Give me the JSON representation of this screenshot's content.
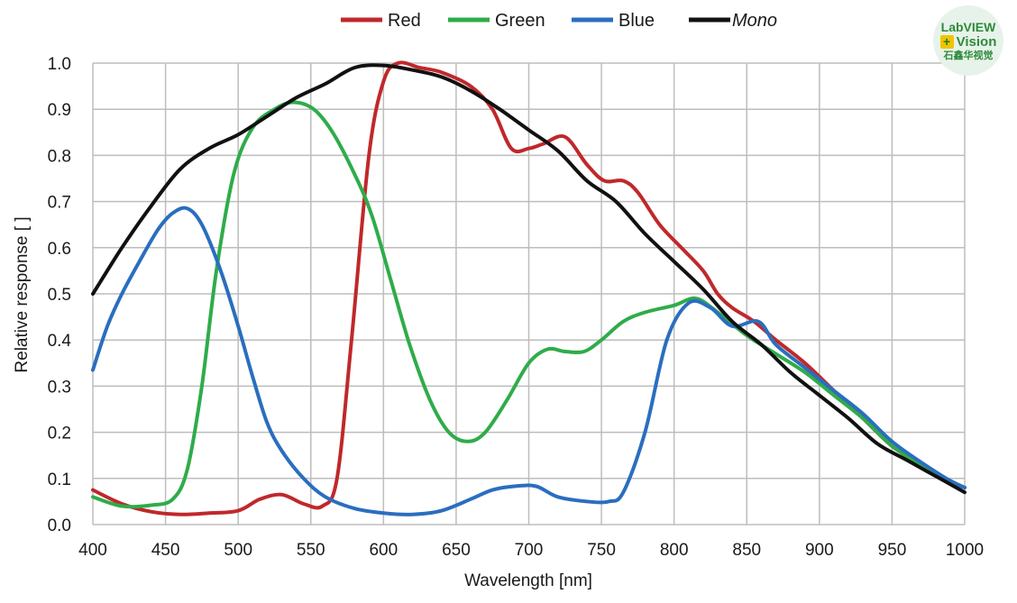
{
  "chart_data": {
    "type": "line",
    "xlabel": "Wavelength [nm]",
    "ylabel": "Relative response [ ]",
    "xlim": [
      400,
      1000
    ],
    "ylim": [
      0,
      1.0
    ],
    "xticks": [
      400,
      450,
      500,
      550,
      600,
      650,
      700,
      750,
      800,
      850,
      900,
      950,
      1000
    ],
    "xtick_labels": [
      "400",
      "450",
      "500",
      "550",
      "600",
      "650",
      "700",
      "750",
      "800",
      "850",
      "900",
      "950",
      "1000"
    ],
    "yticks": [
      0,
      0.1,
      0.2,
      0.3,
      0.4,
      0.5,
      0.6,
      0.7,
      0.8,
      0.9,
      1.0
    ],
    "ytick_labels": [
      "0.0",
      "0.1",
      "0.2",
      "0.3",
      "0.4",
      "0.5",
      "0.6",
      "0.7",
      "0.8",
      "0.9",
      "1.0"
    ],
    "grid": true,
    "legend_position": "top",
    "series": [
      {
        "name": "Red",
        "color": "#c0282b",
        "points": [
          [
            400,
            0.075
          ],
          [
            420,
            0.045
          ],
          [
            440,
            0.028
          ],
          [
            460,
            0.022
          ],
          [
            480,
            0.025
          ],
          [
            500,
            0.03
          ],
          [
            515,
            0.055
          ],
          [
            530,
            0.065
          ],
          [
            545,
            0.045
          ],
          [
            558,
            0.04
          ],
          [
            568,
            0.1
          ],
          [
            578,
            0.4
          ],
          [
            590,
            0.8
          ],
          [
            600,
            0.96
          ],
          [
            610,
            1.0
          ],
          [
            625,
            0.99
          ],
          [
            640,
            0.98
          ],
          [
            660,
            0.95
          ],
          [
            675,
            0.9
          ],
          [
            688,
            0.815
          ],
          [
            700,
            0.815
          ],
          [
            710,
            0.825
          ],
          [
            725,
            0.84
          ],
          [
            740,
            0.78
          ],
          [
            752,
            0.745
          ],
          [
            765,
            0.745
          ],
          [
            775,
            0.72
          ],
          [
            790,
            0.65
          ],
          [
            805,
            0.6
          ],
          [
            820,
            0.55
          ],
          [
            830,
            0.5
          ],
          [
            840,
            0.47
          ],
          [
            855,
            0.44
          ],
          [
            870,
            0.4
          ],
          [
            890,
            0.35
          ],
          [
            910,
            0.29
          ],
          [
            930,
            0.23
          ],
          [
            950,
            0.17
          ],
          [
            970,
            0.13
          ],
          [
            990,
            0.095
          ],
          [
            1000,
            0.08
          ]
        ]
      },
      {
        "name": "Green",
        "color": "#2fac4a",
        "points": [
          [
            400,
            0.06
          ],
          [
            420,
            0.04
          ],
          [
            440,
            0.042
          ],
          [
            455,
            0.055
          ],
          [
            465,
            0.12
          ],
          [
            475,
            0.3
          ],
          [
            485,
            0.55
          ],
          [
            497,
            0.76
          ],
          [
            510,
            0.86
          ],
          [
            525,
            0.9
          ],
          [
            538,
            0.915
          ],
          [
            552,
            0.9
          ],
          [
            565,
            0.85
          ],
          [
            580,
            0.76
          ],
          [
            592,
            0.67
          ],
          [
            605,
            0.53
          ],
          [
            618,
            0.39
          ],
          [
            632,
            0.27
          ],
          [
            645,
            0.2
          ],
          [
            658,
            0.18
          ],
          [
            670,
            0.2
          ],
          [
            685,
            0.27
          ],
          [
            700,
            0.35
          ],
          [
            713,
            0.38
          ],
          [
            725,
            0.375
          ],
          [
            738,
            0.375
          ],
          [
            750,
            0.4
          ],
          [
            765,
            0.44
          ],
          [
            780,
            0.46
          ],
          [
            800,
            0.475
          ],
          [
            815,
            0.49
          ],
          [
            830,
            0.46
          ],
          [
            850,
            0.41
          ],
          [
            870,
            0.37
          ],
          [
            890,
            0.33
          ],
          [
            910,
            0.28
          ],
          [
            930,
            0.23
          ],
          [
            950,
            0.17
          ],
          [
            970,
            0.13
          ],
          [
            990,
            0.095
          ],
          [
            1000,
            0.08
          ]
        ]
      },
      {
        "name": "Blue",
        "color": "#2a6ebf",
        "points": [
          [
            400,
            0.335
          ],
          [
            410,
            0.43
          ],
          [
            420,
            0.5
          ],
          [
            432,
            0.57
          ],
          [
            445,
            0.64
          ],
          [
            455,
            0.675
          ],
          [
            465,
            0.685
          ],
          [
            475,
            0.65
          ],
          [
            488,
            0.55
          ],
          [
            500,
            0.43
          ],
          [
            510,
            0.32
          ],
          [
            520,
            0.22
          ],
          [
            530,
            0.16
          ],
          [
            545,
            0.1
          ],
          [
            560,
            0.06
          ],
          [
            580,
            0.035
          ],
          [
            600,
            0.025
          ],
          [
            620,
            0.022
          ],
          [
            640,
            0.03
          ],
          [
            660,
            0.055
          ],
          [
            675,
            0.075
          ],
          [
            690,
            0.083
          ],
          [
            705,
            0.083
          ],
          [
            720,
            0.06
          ],
          [
            740,
            0.05
          ],
          [
            755,
            0.05
          ],
          [
            765,
            0.07
          ],
          [
            780,
            0.2
          ],
          [
            795,
            0.4
          ],
          [
            810,
            0.48
          ],
          [
            825,
            0.47
          ],
          [
            840,
            0.43
          ],
          [
            858,
            0.44
          ],
          [
            870,
            0.39
          ],
          [
            890,
            0.34
          ],
          [
            910,
            0.29
          ],
          [
            930,
            0.24
          ],
          [
            950,
            0.18
          ],
          [
            970,
            0.135
          ],
          [
            990,
            0.095
          ],
          [
            1000,
            0.08
          ]
        ]
      },
      {
        "name": "Mono",
        "color": "#111111",
        "points": [
          [
            400,
            0.5
          ],
          [
            420,
            0.6
          ],
          [
            440,
            0.69
          ],
          [
            460,
            0.77
          ],
          [
            480,
            0.815
          ],
          [
            500,
            0.845
          ],
          [
            520,
            0.885
          ],
          [
            540,
            0.925
          ],
          [
            560,
            0.955
          ],
          [
            580,
            0.99
          ],
          [
            600,
            0.995
          ],
          [
            620,
            0.985
          ],
          [
            640,
            0.97
          ],
          [
            660,
            0.94
          ],
          [
            680,
            0.9
          ],
          [
            700,
            0.855
          ],
          [
            720,
            0.81
          ],
          [
            740,
            0.745
          ],
          [
            760,
            0.7
          ],
          [
            780,
            0.63
          ],
          [
            800,
            0.57
          ],
          [
            820,
            0.51
          ],
          [
            840,
            0.44
          ],
          [
            860,
            0.39
          ],
          [
            880,
            0.33
          ],
          [
            900,
            0.28
          ],
          [
            920,
            0.23
          ],
          [
            940,
            0.175
          ],
          [
            960,
            0.14
          ],
          [
            980,
            0.105
          ],
          [
            1000,
            0.07
          ]
        ]
      }
    ]
  },
  "logo": {
    "line1": "LabVIEW",
    "plus": "+",
    "line2": "Vision",
    "line3": "石鑫华视觉"
  }
}
